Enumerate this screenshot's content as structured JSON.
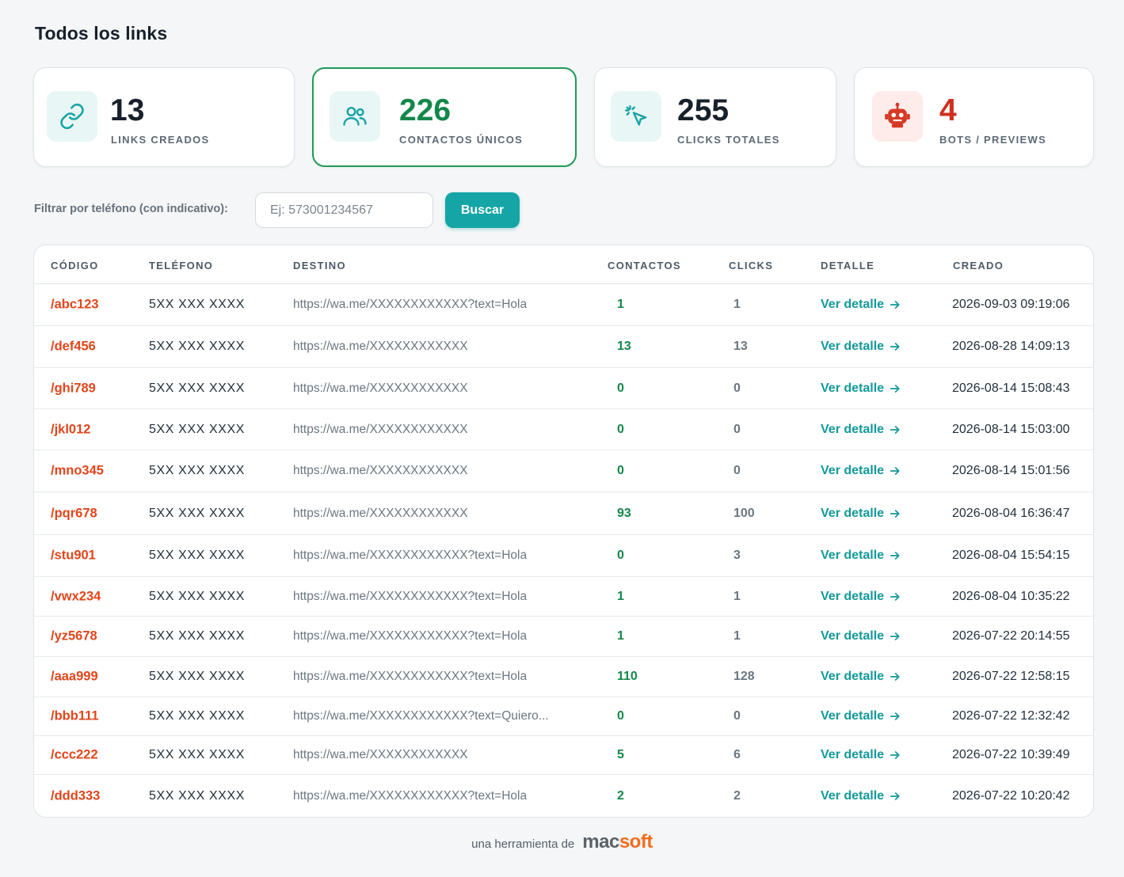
{
  "page": {
    "title": "Todos los links"
  },
  "stats": [
    {
      "value": "13",
      "label": "LINKS CREADOS",
      "icon": "link-icon"
    },
    {
      "value": "226",
      "label": "CONTACTOS ÚNICOS",
      "icon": "users-icon"
    },
    {
      "value": "255",
      "label": "CLICKS TOTALES",
      "icon": "cursor-click-icon"
    },
    {
      "value": "4",
      "label": "BOTS / PREVIEWS",
      "icon": "robot-icon"
    }
  ],
  "filter": {
    "label": "Filtrar por teléfono (con indicativo):",
    "placeholder": "Ej: 573001234567",
    "value": "",
    "button_label": "Buscar"
  },
  "table": {
    "columns": [
      "CÓDIGO",
      "TELÉFONO",
      "DESTINO",
      "CONTACTOS",
      "CLICKS",
      "DETALLE",
      "CREADO"
    ],
    "rows": [
      {
        "code": "/abc123",
        "phone": "5XX XXX XXXX",
        "dest": "https://wa.me/XXXXXXXXXXXX?text=Hola",
        "contacts": "1",
        "clicks": "1",
        "detail": "Ver detalle",
        "created": "2026-09-03 09:19:06"
      },
      {
        "code": "/def456",
        "phone": "5XX XXX XXXX",
        "dest": "https://wa.me/XXXXXXXXXXXX",
        "contacts": "13",
        "clicks": "13",
        "detail": "Ver detalle",
        "created": "2026-08-28 14:09:13"
      },
      {
        "code": "/ghi789",
        "phone": "5XX XXX XXXX",
        "dest": "https://wa.me/XXXXXXXXXXXX",
        "contacts": "0",
        "clicks": "0",
        "detail": "Ver detalle",
        "created": "2026-08-14 15:08:43"
      },
      {
        "code": "/jkl012",
        "phone": "5XX XXX XXXX",
        "dest": "https://wa.me/XXXXXXXXXXXX",
        "contacts": "0",
        "clicks": "0",
        "detail": "Ver detalle",
        "created": "2026-08-14 15:03:00"
      },
      {
        "code": "/mno345",
        "phone": "5XX XXX XXXX",
        "dest": "https://wa.me/XXXXXXXXXXXX",
        "contacts": "0",
        "clicks": "0",
        "detail": "Ver detalle",
        "created": "2026-08-14 15:01:56"
      },
      {
        "code": "/pqr678",
        "phone": "5XX XXX XXXX",
        "dest": "https://wa.me/XXXXXXXXXXXX",
        "contacts": "93",
        "clicks": "100",
        "detail": "Ver detalle",
        "created": "2026-08-04 16:36:47"
      },
      {
        "code": "/stu901",
        "phone": "5XX XXX XXXX",
        "dest": "https://wa.me/XXXXXXXXXXXX?text=Hola",
        "contacts": "0",
        "clicks": "3",
        "detail": "Ver detalle",
        "created": "2026-08-04 15:54:15"
      },
      {
        "code": "/vwx234",
        "phone": "5XX XXX XXXX",
        "dest": "https://wa.me/XXXXXXXXXXXX?text=Hola",
        "contacts": "1",
        "clicks": "1",
        "detail": "Ver detalle",
        "created": "2026-08-04 10:35:22"
      },
      {
        "code": "/yz5678",
        "phone": "5XX XXX XXXX",
        "dest": "https://wa.me/XXXXXXXXXXXX?text=Hola",
        "contacts": "1",
        "clicks": "1",
        "detail": "Ver detalle",
        "created": "2026-07-22 20:14:55"
      },
      {
        "code": "/aaa999",
        "phone": "5XX XXX XXXX",
        "dest": "https://wa.me/XXXXXXXXXXXX?text=Hola",
        "contacts": "110",
        "clicks": "128",
        "detail": "Ver detalle",
        "created": "2026-07-22 12:58:15"
      },
      {
        "code": "/bbb111",
        "phone": "5XX XXX XXXX",
        "dest": "https://wa.me/XXXXXXXXXXXX?text=Quiero...",
        "contacts": "0",
        "clicks": "0",
        "detail": "Ver detalle",
        "created": "2026-07-22 12:32:42"
      },
      {
        "code": "/ccc222",
        "phone": "5XX XXX XXXX",
        "dest": "https://wa.me/XXXXXXXXXXXX",
        "contacts": "5",
        "clicks": "6",
        "detail": "Ver detalle",
        "created": "2026-07-22 10:39:49"
      },
      {
        "code": "/ddd333",
        "phone": "5XX XXX XXXX",
        "dest": "https://wa.me/XXXXXXXXXXXX?text=Hola",
        "contacts": "2",
        "clicks": "2",
        "detail": "Ver detalle",
        "created": "2026-07-22 10:20:42"
      }
    ]
  },
  "footer": {
    "text": "una herramienta de",
    "brand_a": "mac",
    "brand_b": "soft"
  },
  "colors": {
    "accent": "#15a5a6",
    "code": "#e2451b",
    "contacts": "#14874b",
    "bots": "#d0301f",
    "highlight_border": "#1f9b57"
  }
}
